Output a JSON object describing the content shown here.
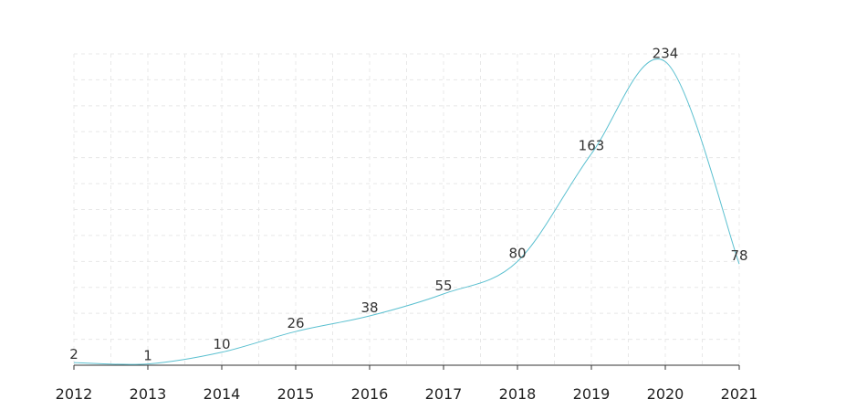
{
  "chart_data": {
    "type": "line",
    "smooth": true,
    "x": [
      "2012",
      "2013",
      "2014",
      "2015",
      "2016",
      "2017",
      "2018",
      "2019",
      "2020",
      "2021"
    ],
    "series": [
      {
        "values": [
          2,
          1,
          10,
          26,
          38,
          55,
          80,
          163,
          234,
          78
        ],
        "color": "#5bc0d0"
      }
    ],
    "ylim": [
      0,
      240
    ],
    "grid": true,
    "data_labels": true
  }
}
